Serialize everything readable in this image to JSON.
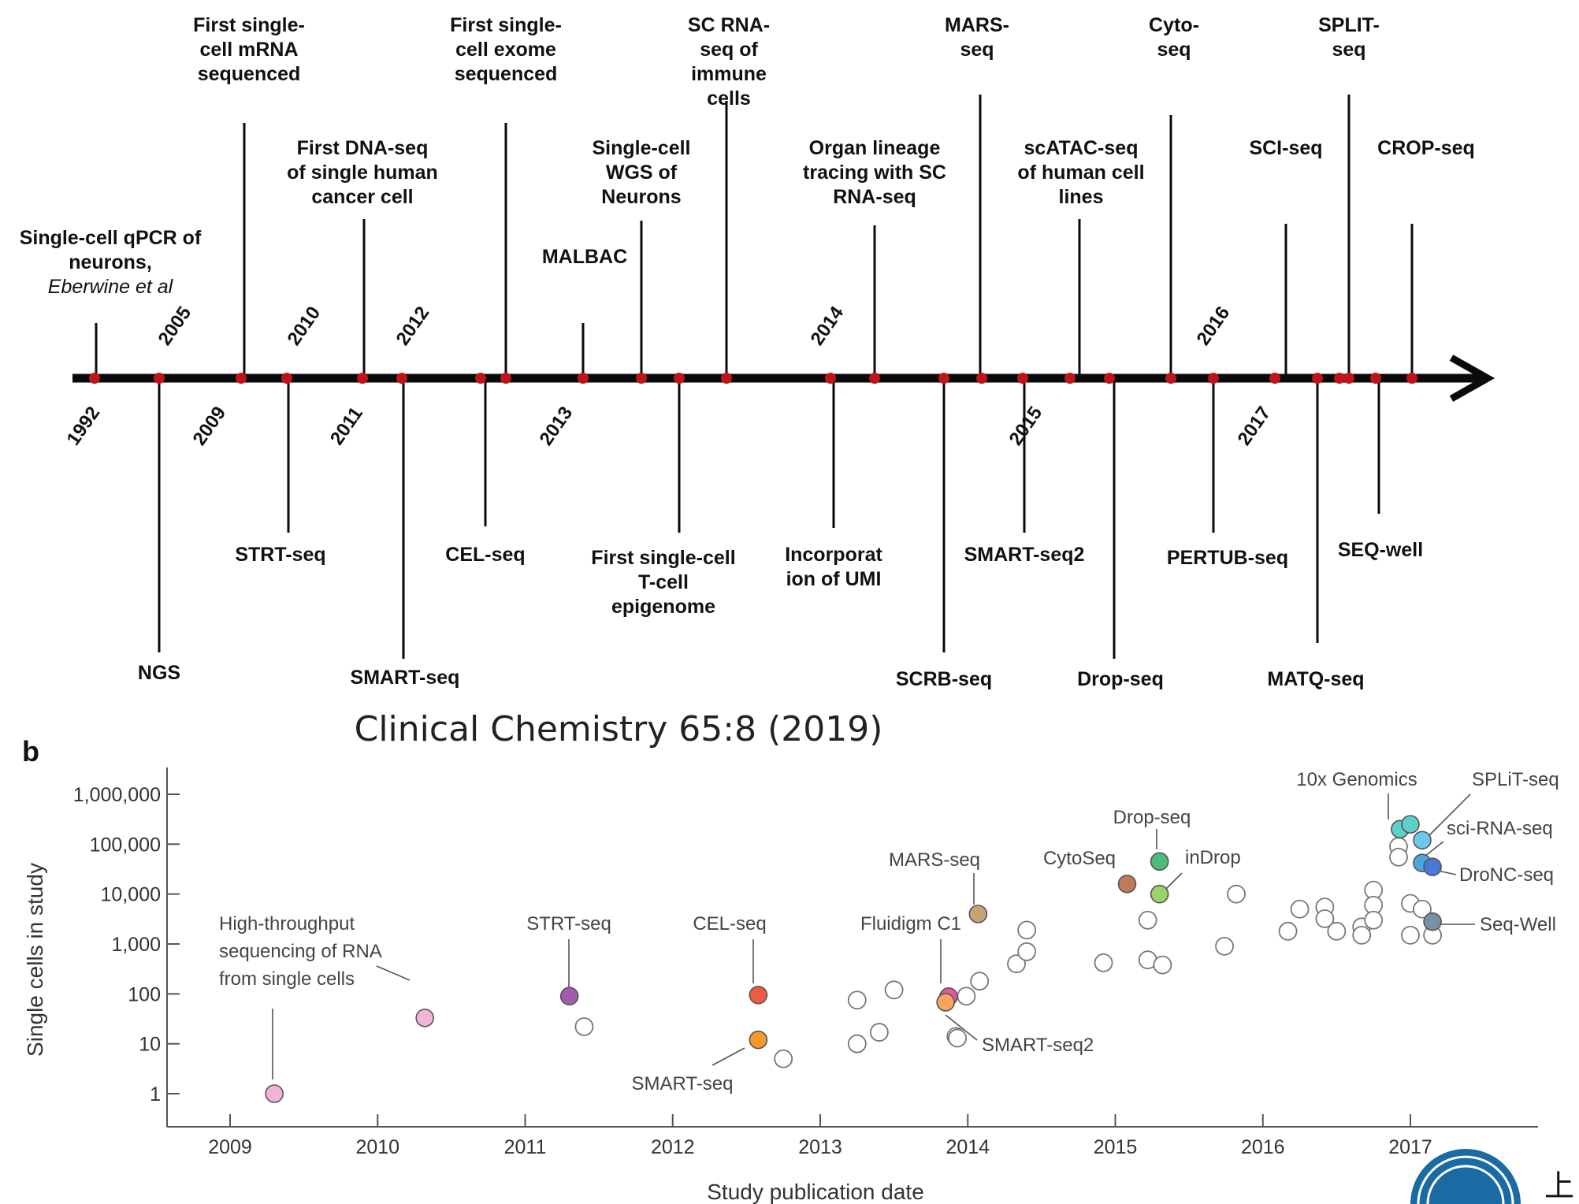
{
  "caption": "Clinical Chemistry 65:8 (2019)",
  "corner_glyph": "上",
  "colors": {
    "timeline": "#0a0a0a",
    "dot": "#c0141c",
    "axis": "#555555",
    "leader": "#555555",
    "open_marker_stroke": "#777777"
  },
  "timeline": {
    "years": [
      {
        "label": "1992",
        "x": 1992.0
      },
      {
        "label": "2005",
        "x": 2005.0
      },
      {
        "label": "2009",
        "x": 2009.0
      },
      {
        "label": "2010",
        "x": 2010.0
      },
      {
        "label": "2011",
        "x": 2011.0
      },
      {
        "label": "2012",
        "x": 2012.0
      },
      {
        "label": "2013",
        "x": 2013.0
      },
      {
        "label": "2014",
        "x": 2014.0
      },
      {
        "label": "2015",
        "x": 2015.0
      },
      {
        "label": "2016",
        "x": 2016.0
      },
      {
        "label": "2017",
        "x": 2017.0
      }
    ],
    "events": [
      {
        "lines": [
          "Single-cell qPCR of",
          "neurons,"
        ],
        "italic_line": "Eberwine et al",
        "side": "above"
      },
      {
        "lines": [
          "First single-",
          "cell mRNA",
          "sequenced"
        ],
        "side": "above"
      },
      {
        "lines": [
          "First DNA-seq",
          "of single human",
          "cancer cell"
        ],
        "side": "above"
      },
      {
        "lines": [
          "First single-",
          "cell exome",
          "sequenced"
        ],
        "side": "above"
      },
      {
        "lines": [
          "MALBAC"
        ],
        "side": "above"
      },
      {
        "lines": [
          "Single-cell",
          "WGS of",
          "Neurons"
        ],
        "side": "above"
      },
      {
        "lines": [
          "SC RNA-",
          "seq of",
          "immune",
          "cells"
        ],
        "side": "above"
      },
      {
        "lines": [
          "Organ lineage",
          "tracing with SC",
          "RNA-seq"
        ],
        "side": "above"
      },
      {
        "lines": [
          "MARS-",
          "seq"
        ],
        "side": "above"
      },
      {
        "lines": [
          "scATAC-seq",
          "of human cell",
          "lines"
        ],
        "side": "above"
      },
      {
        "lines": [
          "Cyto-",
          "seq"
        ],
        "side": "above"
      },
      {
        "lines": [
          "SCI-seq"
        ],
        "side": "above"
      },
      {
        "lines": [
          "SPLIT-",
          "seq"
        ],
        "side": "above"
      },
      {
        "lines": [
          "CROP-seq"
        ],
        "side": "above"
      },
      {
        "lines": [
          "NGS"
        ],
        "side": "below"
      },
      {
        "lines": [
          "STRT-seq"
        ],
        "side": "below"
      },
      {
        "lines": [
          "SMART-seq"
        ],
        "side": "below"
      },
      {
        "lines": [
          "CEL-seq"
        ],
        "side": "below"
      },
      {
        "lines": [
          "First single-cell",
          "T-cell",
          "epigenome"
        ],
        "side": "below"
      },
      {
        "lines": [
          "Incorporat",
          "ion of UMI"
        ],
        "side": "below"
      },
      {
        "lines": [
          "SCRB-seq"
        ],
        "side": "below"
      },
      {
        "lines": [
          "SMART-seq2"
        ],
        "side": "below"
      },
      {
        "lines": [
          "Drop-seq"
        ],
        "side": "below"
      },
      {
        "lines": [
          "PERTUB-seq"
        ],
        "side": "below"
      },
      {
        "lines": [
          "MATQ-seq"
        ],
        "side": "below"
      },
      {
        "lines": [
          "SEQ-well"
        ],
        "side": "below"
      }
    ]
  },
  "chart_data": {
    "type": "scatter",
    "panel_label": "b",
    "xlabel": "Study publication date",
    "ylabel": "Single cells in study",
    "y_scale": "log",
    "xlim": [
      2008.6,
      2017.85
    ],
    "ylim": [
      0.5,
      2500000
    ],
    "x_ticks": [
      {
        "label": "2009",
        "value": 2009
      },
      {
        "label": "2010",
        "value": 2010
      },
      {
        "label": "2011",
        "value": 2011
      },
      {
        "label": "2012",
        "value": 2012
      },
      {
        "label": "2013",
        "value": 2013
      },
      {
        "label": "2014",
        "value": 2014
      },
      {
        "label": "2015",
        "value": 2015
      },
      {
        "label": "2016",
        "value": 2016
      },
      {
        "label": "2017",
        "value": 2017
      }
    ],
    "y_ticks": [
      {
        "label": "1",
        "value": 1
      },
      {
        "label": "10",
        "value": 10
      },
      {
        "label": "100",
        "value": 100
      },
      {
        "label": "1,000",
        "value": 1000
      },
      {
        "label": "10,000",
        "value": 10000
      },
      {
        "label": "100,000",
        "value": 100000
      },
      {
        "label": "1,000,000",
        "value": 1000000
      }
    ],
    "grid": false,
    "labeled_points": [
      {
        "x": 2009.3,
        "y": 1,
        "color": "#f0b4d8",
        "label": "High-throughput\nsequencing of RNA\nfrom single cells"
      },
      {
        "x": 2010.32,
        "y": 33,
        "color": "#f0b4d8",
        "label": ""
      },
      {
        "x": 2011.3,
        "y": 90,
        "color": "#a35bb0",
        "label": "STRT-seq"
      },
      {
        "x": 2012.58,
        "y": 95,
        "color": "#ef5a44",
        "label": "CEL-seq"
      },
      {
        "x": 2012.58,
        "y": 12,
        "color": "#f39a2b",
        "label": "SMART-seq"
      },
      {
        "x": 2013.87,
        "y": 88,
        "color": "#e8559f",
        "label": "Fluidigm C1"
      },
      {
        "x": 2013.85,
        "y": 68,
        "color": "#f6a55c",
        "label": "SMART-seq2"
      },
      {
        "x": 2014.07,
        "y": 4000,
        "color": "#c8a17a",
        "label": "MARS-seq"
      },
      {
        "x": 2015.08,
        "y": 16000,
        "color": "#bf7b57",
        "label": "CytoSeq"
      },
      {
        "x": 2015.3,
        "y": 45000,
        "color": "#4fbb7b",
        "label": "Drop-seq"
      },
      {
        "x": 2015.3,
        "y": 10000,
        "color": "#9bd36b",
        "label": "inDrop"
      },
      {
        "x": 2016.93,
        "y": 200000,
        "color": "#5fcfca",
        "label": "10x Genomics"
      },
      {
        "x": 2017.0,
        "y": 250000,
        "color": "#5fcfca",
        "label": ""
      },
      {
        "x": 2017.08,
        "y": 120000,
        "color": "#6cc8e8",
        "label": "SPLiT-seq"
      },
      {
        "x": 2017.08,
        "y": 42000,
        "color": "#45a8e0",
        "label": "sci-RNA-seq"
      },
      {
        "x": 2017.15,
        "y": 35000,
        "color": "#4a78d8",
        "label": "DroNC-seq"
      },
      {
        "x": 2017.15,
        "y": 2800,
        "color": "#7a8ea5",
        "label": "Seq-Well"
      }
    ],
    "open_points": [
      {
        "x": 2011.4,
        "y": 22
      },
      {
        "x": 2012.75,
        "y": 5
      },
      {
        "x": 2013.25,
        "y": 75
      },
      {
        "x": 2013.25,
        "y": 10
      },
      {
        "x": 2013.4,
        "y": 17
      },
      {
        "x": 2013.5,
        "y": 120
      },
      {
        "x": 2013.92,
        "y": 14
      },
      {
        "x": 2013.93,
        "y": 13
      },
      {
        "x": 2013.99,
        "y": 90
      },
      {
        "x": 2014.08,
        "y": 180
      },
      {
        "x": 2014.33,
        "y": 400
      },
      {
        "x": 2014.4,
        "y": 700
      },
      {
        "x": 2014.4,
        "y": 1900
      },
      {
        "x": 2014.92,
        "y": 420
      },
      {
        "x": 2015.22,
        "y": 3000
      },
      {
        "x": 2015.22,
        "y": 480
      },
      {
        "x": 2015.32,
        "y": 380
      },
      {
        "x": 2015.74,
        "y": 900
      },
      {
        "x": 2015.82,
        "y": 10000
      },
      {
        "x": 2016.17,
        "y": 1800
      },
      {
        "x": 2016.25,
        "y": 5000
      },
      {
        "x": 2016.42,
        "y": 5500
      },
      {
        "x": 2016.42,
        "y": 3200
      },
      {
        "x": 2016.5,
        "y": 1800
      },
      {
        "x": 2016.67,
        "y": 2200
      },
      {
        "x": 2016.67,
        "y": 1500
      },
      {
        "x": 2016.75,
        "y": 12000
      },
      {
        "x": 2016.75,
        "y": 6000
      },
      {
        "x": 2016.75,
        "y": 3000
      },
      {
        "x": 2016.92,
        "y": 90000
      },
      {
        "x": 2016.92,
        "y": 55000
      },
      {
        "x": 2017.0,
        "y": 6500
      },
      {
        "x": 2017.0,
        "y": 1500
      },
      {
        "x": 2017.08,
        "y": 5000
      },
      {
        "x": 2017.15,
        "y": 1500
      }
    ]
  }
}
